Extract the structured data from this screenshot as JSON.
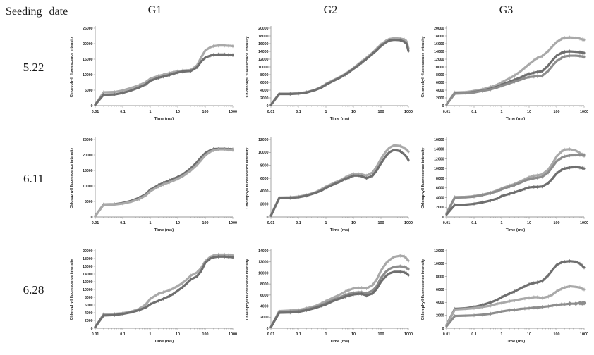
{
  "header": {
    "seeding_date_label": "Seeding date",
    "columns": [
      "G1",
      "G2",
      "G3"
    ]
  },
  "rows": [
    {
      "label": "5.22"
    },
    {
      "label": "6.11"
    },
    {
      "label": "6.28"
    }
  ],
  "axis": {
    "xlabel": "Time (ms)",
    "ylabel": "Chlorophyll fluorescence intensity",
    "xticks": [
      0.01,
      0.1,
      1,
      10,
      100,
      1000
    ]
  },
  "colors": {
    "light": "#a9a9a9",
    "medium": "#8d8d8d",
    "dark": "#6f6f6f",
    "axis": "#9a9a9a",
    "text": "#222222"
  },
  "chart_data": [
    {
      "type": "line",
      "row": "5.22",
      "col": "G1",
      "xscale": "log",
      "xlabel": "Time (ms)",
      "ylabel": "Chlorophyll fluorescence intensity",
      "xlim": [
        0.01,
        1000
      ],
      "ylim": [
        0,
        25000
      ],
      "ytick_step": 5000,
      "x": [
        0.01,
        0.02,
        0.05,
        0.1,
        0.2,
        0.4,
        0.7,
        1,
        2,
        3,
        5,
        7,
        10,
        15,
        20,
        30,
        50,
        70,
        100,
        150,
        200,
        300,
        500,
        700,
        850,
        1000
      ],
      "series": [
        {
          "name": "series-light",
          "color": "light",
          "y": [
            300,
            4300,
            4400,
            4900,
            5700,
            6600,
            7600,
            8700,
            9600,
            10000,
            10500,
            10800,
            11100,
            11300,
            11400,
            11500,
            13000,
            15500,
            17800,
            18800,
            19200,
            19400,
            19400,
            19300,
            19300,
            19200
          ]
        },
        {
          "name": "series-dark",
          "color": "dark",
          "y": [
            300,
            3500,
            3600,
            4100,
            4900,
            5900,
            6900,
            8000,
            9000,
            9400,
            9900,
            10300,
            10700,
            11000,
            11100,
            11200,
            12400,
            14200,
            15500,
            16100,
            16400,
            16500,
            16500,
            16400,
            16400,
            16300
          ]
        }
      ]
    },
    {
      "type": "line",
      "row": "5.22",
      "col": "G2",
      "xscale": "log",
      "xlabel": "Time (ms)",
      "ylabel": "Chlorophyll fluorescence intensity",
      "xlim": [
        0.01,
        1000
      ],
      "ylim": [
        0,
        20000
      ],
      "ytick_step": 2000,
      "x": [
        0.01,
        0.02,
        0.05,
        0.1,
        0.2,
        0.4,
        0.7,
        1,
        2,
        3,
        5,
        7,
        10,
        15,
        20,
        30,
        50,
        70,
        100,
        150,
        200,
        300,
        500,
        700,
        850,
        1000
      ],
      "series": [
        {
          "name": "series-light",
          "color": "light",
          "y": [
            200,
            3100,
            3100,
            3200,
            3500,
            4100,
            4900,
            5600,
            6700,
            7300,
            8200,
            8900,
            9700,
            10700,
            11400,
            12400,
            13700,
            14700,
            15800,
            16700,
            17200,
            17400,
            17300,
            17100,
            16600,
            14800
          ]
        },
        {
          "name": "series-dark",
          "color": "dark",
          "y": [
            200,
            3000,
            3000,
            3100,
            3400,
            4000,
            4700,
            5400,
            6500,
            7100,
            8000,
            8700,
            9500,
            10400,
            11100,
            12100,
            13400,
            14300,
            15400,
            16300,
            16800,
            17000,
            16900,
            16500,
            16000,
            14100
          ]
        }
      ]
    },
    {
      "type": "line",
      "row": "5.22",
      "col": "G3",
      "xscale": "log",
      "xlabel": "Time (ms)",
      "ylabel": "Chlorophyll fluorescence intensity",
      "xlim": [
        0.01,
        1000
      ],
      "ylim": [
        0,
        20000
      ],
      "ytick_step": 2000,
      "x": [
        0.01,
        0.02,
        0.05,
        0.1,
        0.2,
        0.4,
        0.7,
        1,
        2,
        3,
        5,
        7,
        10,
        15,
        20,
        30,
        50,
        70,
        100,
        150,
        200,
        300,
        500,
        700,
        850,
        1000
      ],
      "series": [
        {
          "name": "series-light",
          "color": "light",
          "y": [
            300,
            3400,
            3500,
            3800,
            4200,
            4800,
            5400,
            6000,
            7100,
            7800,
            8900,
            9800,
            10700,
            11700,
            12300,
            12800,
            14100,
            15300,
            16400,
            17200,
            17500,
            17600,
            17500,
            17300,
            17100,
            17000
          ]
        },
        {
          "name": "series-dark",
          "color": "dark",
          "y": [
            300,
            3200,
            3300,
            3500,
            3900,
            4400,
            4900,
            5400,
            6200,
            6700,
            7300,
            7800,
            8200,
            8500,
            8700,
            8900,
            10400,
            11700,
            12900,
            13600,
            13900,
            14000,
            13900,
            13800,
            13700,
            13600
          ]
        },
        {
          "name": "series-medium",
          "color": "medium",
          "y": [
            300,
            3100,
            3200,
            3400,
            3800,
            4200,
            4700,
            5100,
            5800,
            6200,
            6700,
            7100,
            7400,
            7500,
            7600,
            7700,
            9000,
            10300,
            11500,
            12300,
            12700,
            12900,
            12900,
            12800,
            12700,
            12600
          ]
        }
      ]
    },
    {
      "type": "line",
      "row": "6.11",
      "col": "G1",
      "xscale": "log",
      "xlabel": "Time (ms)",
      "ylabel": "Chlorophyll fluorescence intensity",
      "xlim": [
        0.01,
        1000
      ],
      "ylim": [
        0,
        25000
      ],
      "ytick_step": 5000,
      "x": [
        0.01,
        0.02,
        0.05,
        0.1,
        0.2,
        0.4,
        0.7,
        1,
        2,
        3,
        5,
        7,
        10,
        15,
        20,
        30,
        50,
        70,
        100,
        150,
        200,
        300,
        500,
        700,
        850,
        1000
      ],
      "series": [
        {
          "name": "series-dark",
          "color": "dark",
          "y": [
            300,
            4000,
            4100,
            4500,
            5200,
            6200,
            7400,
            8800,
            10300,
            11000,
            11800,
            12300,
            12900,
            13700,
            14500,
            15700,
            17700,
            19200,
            20600,
            21500,
            21900,
            22000,
            22000,
            21900,
            21900,
            21800
          ]
        },
        {
          "name": "series-light",
          "color": "light",
          "y": [
            300,
            3900,
            4000,
            4300,
            4900,
            5800,
            7000,
            8300,
            9800,
            10500,
            11200,
            11700,
            12300,
            13100,
            13900,
            15000,
            16800,
            18300,
            19900,
            21000,
            21500,
            21800,
            21800,
            21700,
            21700,
            21600
          ]
        }
      ]
    },
    {
      "type": "line",
      "row": "6.11",
      "col": "G2",
      "xscale": "log",
      "xlabel": "Time (ms)",
      "ylabel": "Chlorophyll fluorescence intensity",
      "xlim": [
        0.01,
        1000
      ],
      "ylim": [
        0,
        12000
      ],
      "ytick_step": 2000,
      "x": [
        0.01,
        0.02,
        0.05,
        0.1,
        0.2,
        0.4,
        0.7,
        1,
        2,
        3,
        5,
        7,
        10,
        15,
        20,
        30,
        50,
        70,
        100,
        150,
        200,
        300,
        500,
        700,
        850,
        1000
      ],
      "series": [
        {
          "name": "series-light",
          "color": "light",
          "y": [
            200,
            3000,
            3050,
            3150,
            3400,
            3800,
            4300,
            4700,
            5300,
            5600,
            6100,
            6400,
            6700,
            6700,
            6600,
            6400,
            6900,
            7800,
            9000,
            10100,
            10700,
            11100,
            11000,
            10700,
            10400,
            10100
          ]
        },
        {
          "name": "series-dark",
          "color": "dark",
          "y": [
            200,
            2900,
            2950,
            3050,
            3300,
            3700,
            4100,
            4500,
            5100,
            5400,
            5900,
            6100,
            6400,
            6400,
            6300,
            6000,
            6400,
            7200,
            8300,
            9400,
            10000,
            10400,
            10200,
            9700,
            9300,
            8800
          ]
        }
      ]
    },
    {
      "type": "line",
      "row": "6.11",
      "col": "G3",
      "xscale": "log",
      "xlabel": "Time (ms)",
      "ylabel": "Chlorophyll fluorescence intensity",
      "xlim": [
        0.01,
        1000
      ],
      "ylim": [
        0,
        16000
      ],
      "ytick_step": 2000,
      "x": [
        0.01,
        0.02,
        0.05,
        0.1,
        0.2,
        0.4,
        0.7,
        1,
        2,
        3,
        5,
        7,
        10,
        15,
        20,
        30,
        50,
        70,
        100,
        150,
        200,
        300,
        500,
        700,
        850,
        1000
      ],
      "series": [
        {
          "name": "series-light",
          "color": "light",
          "y": [
            800,
            4100,
            4150,
            4300,
            4600,
            5000,
            5500,
            5900,
            6500,
            6800,
            7400,
            7800,
            8200,
            8500,
            8600,
            8800,
            9800,
            11000,
            12500,
            13500,
            13900,
            14000,
            13700,
            13200,
            12900,
            12600
          ]
        },
        {
          "name": "series-medium",
          "color": "medium",
          "y": [
            700,
            4000,
            4050,
            4200,
            4500,
            4900,
            5300,
            5700,
            6300,
            6600,
            7100,
            7500,
            7800,
            8000,
            8100,
            8300,
            9200,
            10300,
            11500,
            12200,
            12500,
            12700,
            12750,
            12800,
            12800,
            12800
          ]
        },
        {
          "name": "series-dark",
          "color": "dark",
          "y": [
            500,
            2500,
            2550,
            2700,
            3000,
            3400,
            3800,
            4300,
            4800,
            5100,
            5500,
            5800,
            6100,
            6200,
            6200,
            6300,
            7000,
            7900,
            9000,
            9700,
            10000,
            10200,
            10300,
            10200,
            10100,
            10000
          ]
        }
      ]
    },
    {
      "type": "line",
      "row": "6.28",
      "col": "G1",
      "xscale": "log",
      "xlabel": "Time (ms)",
      "ylabel": "Chlorophyll fluorescence intensity",
      "xlim": [
        0.01,
        1000
      ],
      "ylim": [
        0,
        20000
      ],
      "ytick_step": 2000,
      "x": [
        0.01,
        0.02,
        0.05,
        0.1,
        0.2,
        0.4,
        0.7,
        1,
        2,
        3,
        5,
        7,
        10,
        15,
        20,
        30,
        50,
        70,
        100,
        150,
        200,
        300,
        500,
        700,
        850,
        1000
      ],
      "series": [
        {
          "name": "series-light",
          "color": "light",
          "y": [
            300,
            3600,
            3700,
            3900,
            4300,
            5000,
            6200,
            7600,
            8900,
            9300,
            9800,
            10300,
            10900,
            11700,
            12400,
            13600,
            14400,
            15500,
            17300,
            18400,
            18800,
            19000,
            19000,
            18900,
            18900,
            18800
          ]
        },
        {
          "name": "series-dark",
          "color": "dark",
          "y": [
            300,
            3300,
            3400,
            3700,
            4100,
            4700,
            5400,
            6200,
            7100,
            7600,
            8300,
            8900,
            9700,
            10600,
            11400,
            12600,
            13400,
            14700,
            16900,
            18000,
            18300,
            18500,
            18500,
            18400,
            18400,
            18300
          ]
        }
      ]
    },
    {
      "type": "line",
      "row": "6.28",
      "col": "G2",
      "xscale": "log",
      "xlabel": "Time (ms)",
      "ylabel": "Chlorophyll fluorescence intensity",
      "xlim": [
        0.01,
        1000
      ],
      "ylim": [
        0,
        14000
      ],
      "ytick_step": 2000,
      "x": [
        0.01,
        0.02,
        0.05,
        0.1,
        0.2,
        0.4,
        0.7,
        1,
        2,
        3,
        5,
        7,
        10,
        15,
        20,
        30,
        50,
        70,
        100,
        150,
        200,
        300,
        500,
        700,
        850,
        1000
      ],
      "series": [
        {
          "name": "series-light",
          "color": "light",
          "y": [
            200,
            3100,
            3200,
            3300,
            3600,
            4000,
            4500,
            4900,
            5600,
            6000,
            6600,
            6900,
            7200,
            7300,
            7300,
            7200,
            7800,
            8800,
            10400,
            11700,
            12300,
            12900,
            13100,
            13000,
            12600,
            12200
          ]
        },
        {
          "name": "series-medium",
          "color": "medium",
          "y": [
            200,
            2900,
            3000,
            3100,
            3400,
            3800,
            4200,
            4500,
            5200,
            5500,
            6000,
            6200,
            6400,
            6500,
            6500,
            6300,
            6800,
            7600,
            9100,
            10200,
            10700,
            11100,
            11200,
            11100,
            10900,
            10700
          ]
        },
        {
          "name": "series-dark",
          "color": "dark",
          "y": [
            200,
            2800,
            2850,
            2950,
            3250,
            3650,
            4050,
            4300,
            5000,
            5300,
            5700,
            5900,
            6100,
            6200,
            6200,
            5900,
            6300,
            7100,
            8400,
            9400,
            9900,
            10200,
            10200,
            10100,
            9900,
            9600
          ]
        }
      ]
    },
    {
      "type": "line",
      "row": "6.28",
      "col": "G3",
      "xscale": "log",
      "xlabel": "Time (ms)",
      "ylabel": "Chlorophyll fluorescence intensity",
      "xlim": [
        0.01,
        1000
      ],
      "ylim": [
        0,
        12000
      ],
      "ytick_step": 2000,
      "x": [
        0.01,
        0.02,
        0.05,
        0.1,
        0.2,
        0.4,
        0.7,
        1,
        2,
        3,
        5,
        7,
        10,
        15,
        20,
        30,
        50,
        70,
        100,
        150,
        200,
        300,
        500,
        700,
        850,
        1000
      ],
      "series": [
        {
          "name": "series-dark",
          "color": "dark",
          "y": [
            500,
            3000,
            3100,
            3300,
            3600,
            4000,
            4400,
            4800,
            5400,
            5700,
            6200,
            6500,
            6800,
            7000,
            7100,
            7300,
            8200,
            9000,
            9800,
            10200,
            10300,
            10400,
            10300,
            10000,
            9700,
            9400
          ]
        },
        {
          "name": "series-light",
          "color": "light",
          "y": [
            400,
            2900,
            3000,
            3100,
            3300,
            3500,
            3800,
            3900,
            4200,
            4300,
            4500,
            4600,
            4700,
            4800,
            4800,
            4700,
            4900,
            5200,
            5700,
            6100,
            6300,
            6500,
            6400,
            6300,
            6100,
            6000
          ]
        },
        {
          "name": "series-medium",
          "color": "medium",
          "marker": "diamond",
          "marker_from": 300,
          "y": [
            300,
            1900,
            1950,
            2000,
            2100,
            2250,
            2450,
            2600,
            2800,
            2850,
            3000,
            3050,
            3100,
            3200,
            3200,
            3300,
            3400,
            3500,
            3600,
            3700,
            3700,
            3800,
            3800,
            3900,
            3850,
            3900
          ]
        }
      ]
    }
  ]
}
